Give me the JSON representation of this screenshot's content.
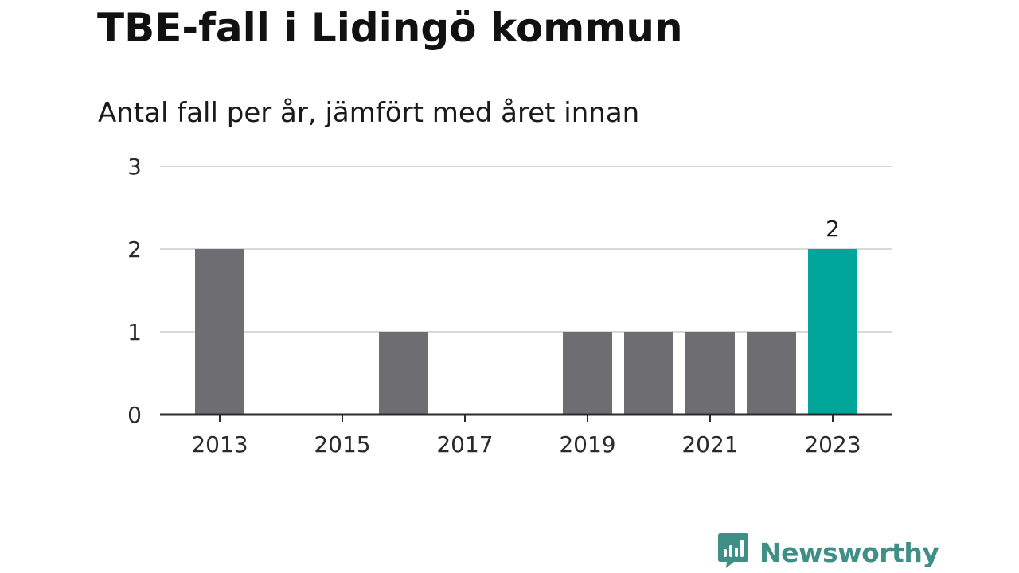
{
  "header": {
    "title": "TBE-fall i Lidingö kommun",
    "subtitle": "Antal fall per år, jämfört med året innan"
  },
  "chart_data": {
    "type": "bar",
    "categories": [
      "2013",
      "2014",
      "2015",
      "2016",
      "2017",
      "2018",
      "2019",
      "2020",
      "2021",
      "2022",
      "2023"
    ],
    "values": [
      2,
      0,
      0,
      1,
      0,
      0,
      1,
      1,
      1,
      1,
      2
    ],
    "x_tick_labels": [
      "2013",
      "2015",
      "2017",
      "2019",
      "2021",
      "2023"
    ],
    "y_ticks": [
      0,
      1,
      2,
      3
    ],
    "ylim": [
      0,
      3
    ],
    "xlabel": "",
    "ylabel": "",
    "grid": true,
    "highlight_index": 10,
    "data_labels": [
      {
        "index": 10,
        "text": "2"
      }
    ],
    "colors": {
      "bar": "#6e6d72",
      "highlight": "#00a699",
      "grid": "#d9d9d9",
      "axis": "#2b2b2b"
    }
  },
  "brand": {
    "name": "Newsworthy",
    "icon": "bar-chart-speech-bubble-icon",
    "color": "#3f8f86"
  }
}
